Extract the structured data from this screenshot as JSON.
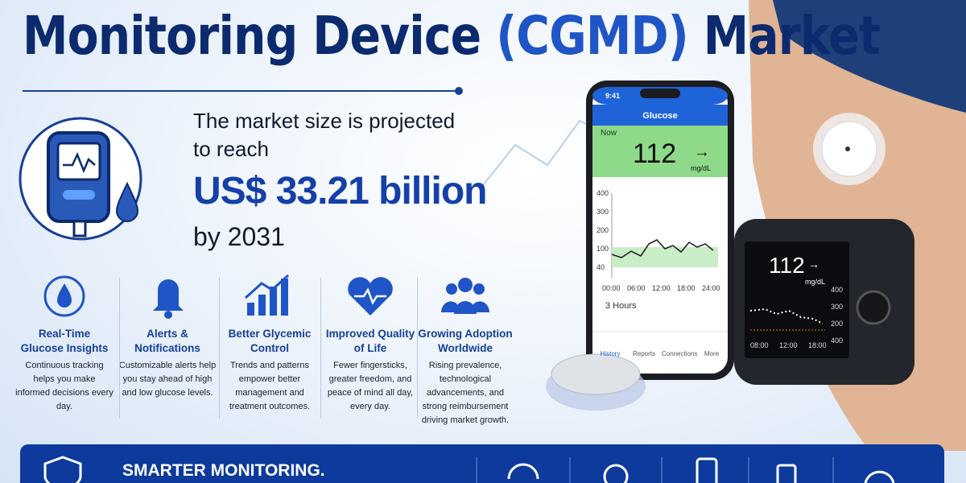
{
  "header": {
    "title_parts": [
      "Monitoring Device ",
      "(CGMD)",
      " Market"
    ]
  },
  "market": {
    "line1": "The market size is projected",
    "line2": "to reach",
    "value": "US$ 33.21 billion",
    "year": "by 2031"
  },
  "features": [
    {
      "title": "Real-Time Glucose Insights",
      "text": "Continuous tracking helps you make informed decisions every day."
    },
    {
      "title": "Alerts & Notifications",
      "text": "Customizable alerts help you stay ahead of high and low glucose levels."
    },
    {
      "title": "Better Glycemic Control",
      "text": "Trends and patterns empower better management and treatment outcomes."
    },
    {
      "title": "Improved Quality of Life",
      "text": "Fewer fingersticks, greater freedom, and peace of mind all day, every day."
    },
    {
      "title": "Growing Adoption Worldwide",
      "text": "Rising prevalence, technological advancements, and strong reimbursement driving market growth."
    }
  ],
  "phone": {
    "time": "9:41",
    "screen_title": "Glucose",
    "now": "Now",
    "reading": "112",
    "unit": "mg/dL",
    "y_labels": [
      "400",
      "300",
      "200",
      "100",
      "40"
    ],
    "x_labels": [
      "00:00",
      "06:00",
      "12:00",
      "18:00",
      "24:00"
    ],
    "range": "3 Hours",
    "tabs": [
      "History",
      "Reports",
      "Connections",
      "More"
    ]
  },
  "receiver": {
    "reading": "112",
    "unit": "mg/dL",
    "y_labels": [
      "400",
      "300",
      "200",
      "400"
    ],
    "x_labels": [
      "08:00",
      "12:00",
      "18:00"
    ]
  },
  "banner": {
    "text": "SMARTER MONITORING."
  }
}
